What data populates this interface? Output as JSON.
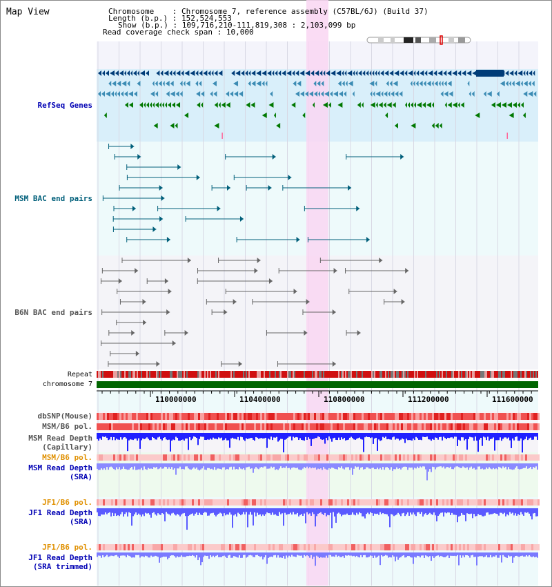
{
  "title": "Map View",
  "info": {
    "chromosome_label": "Chromosome",
    "chromosome_value": "Chromosome 7, reference assembly (C57BL/6J) (Build 37)",
    "length_label": "Length (b.p.)",
    "length_value": "152,524,553",
    "show_label": "Show (b.p.)",
    "show_value": "109,716,210-111,819,308 : 2,103,099 bp",
    "coverage_label": "Read coverage check span",
    "coverage_value": "10,000"
  },
  "tracks": {
    "refseq": "RefSeq Genes",
    "msm_bac": "MSM BAC end pairs",
    "b6n_bac": "B6N BAC end pairs",
    "repeat": "Repeat",
    "chromosome": "chromosome 7",
    "dbsnp": "dbSNP(Mouse)",
    "msm_b6_pol_1": "MSM/B6 pol.",
    "msm_depth_cap_1": "MSM Read Depth",
    "msm_depth_cap_2": "(Capillary)",
    "msm_b6_pol_2": "MSM/B6 pol.",
    "msm_depth_sra_1": "MSM Read Depth",
    "msm_depth_sra_2": "(SRA)",
    "jf1_pol_1": "JF1/B6 pol.",
    "jf1_depth_sra_1": "JF1 Read Depth",
    "jf1_depth_sra_2": "(SRA)",
    "jf1_pol_2": "JF1/B6 pol.",
    "jf1_depth_trim_1": "JF1 Read Depth",
    "jf1_depth_trim_2": "(SRA trimmed)"
  },
  "axis_ticks": [
    "110000000",
    "110400000",
    "110800000",
    "111200000",
    "111600000"
  ],
  "colors": {
    "refseq_bg": "#d9effa",
    "bac_bg": "#eefafb",
    "highlight": "#f9d6f2",
    "gene_dark": "#003c78",
    "gene_mid": "#3c8cb4",
    "gene_green": "#007800",
    "bac_msm": "#005f7a",
    "bac_b6n": "#666666",
    "chrom_green": "#006400",
    "depth_blue": "#1a1aff",
    "depth_light": "#7a7aff",
    "label_blue": "#0000b4",
    "label_orange": "#e09000"
  }
}
